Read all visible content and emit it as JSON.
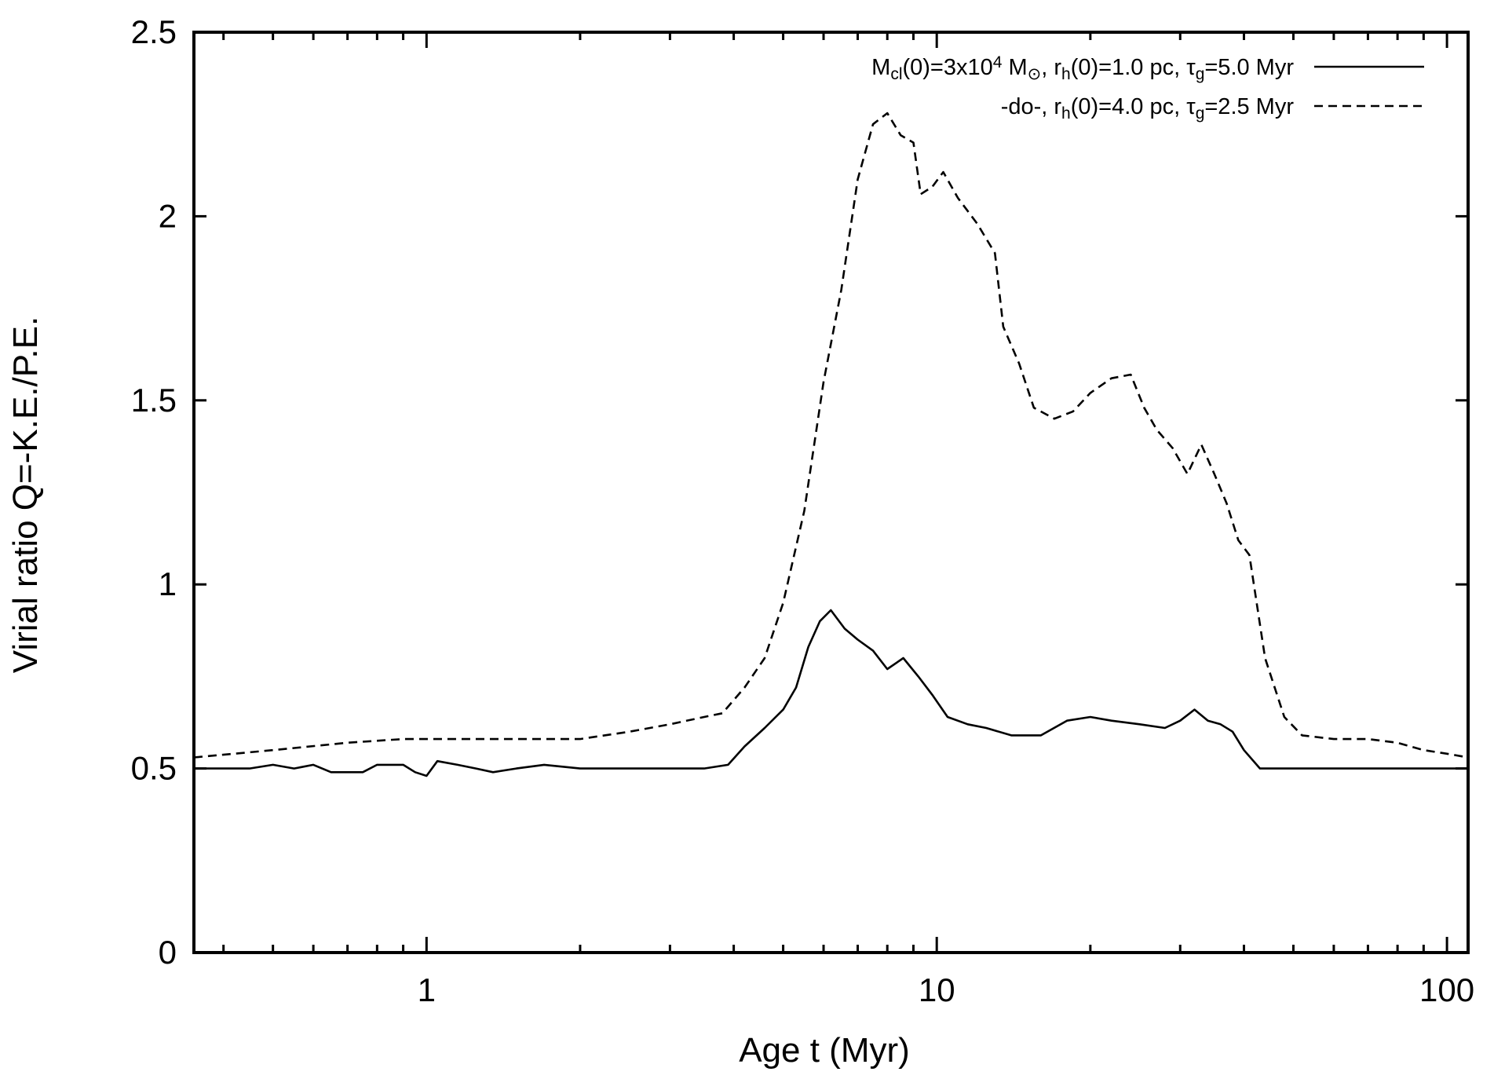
{
  "chart_data": {
    "type": "line",
    "x_scale": "log",
    "xlim": [
      0.35,
      110
    ],
    "ylim": [
      0,
      2.5
    ],
    "xlabel": "Age t (Myr)",
    "ylabel": "Virial ratio Q=-K.E./P.E.",
    "x_ticks": [
      {
        "value": 1,
        "label": "1"
      },
      {
        "value": 10,
        "label": "10"
      },
      {
        "value": 100,
        "label": "100"
      }
    ],
    "y_ticks": [
      {
        "value": 0,
        "label": "0"
      },
      {
        "value": 0.5,
        "label": "0.5"
      },
      {
        "value": 1,
        "label": "1"
      },
      {
        "value": 1.5,
        "label": "1.5"
      },
      {
        "value": 2,
        "label": "2"
      },
      {
        "value": 2.5,
        "label": "2.5"
      }
    ],
    "grid": false,
    "legend_position": "top-right",
    "series": [
      {
        "name": "Mcl(0)=3x10^4 M⊙, rh(0)=1.0 pc, τg=5.0 Myr",
        "legend": [
          {
            "t": "M"
          },
          {
            "t": "cl",
            "sub": true
          },
          {
            "t": "(0)=3x10"
          },
          {
            "t": "4",
            "sup": true
          },
          {
            "t": " M"
          },
          {
            "t": "⊙",
            "sub": true
          },
          {
            "t": ", r"
          },
          {
            "t": "h",
            "sub": true
          },
          {
            "t": "(0)=1.0 pc, τ"
          },
          {
            "t": "g",
            "sub": true
          },
          {
            "t": "=5.0 Myr"
          }
        ],
        "style": "solid",
        "points": [
          [
            0.35,
            0.5
          ],
          [
            0.45,
            0.5
          ],
          [
            0.5,
            0.51
          ],
          [
            0.55,
            0.5
          ],
          [
            0.6,
            0.51
          ],
          [
            0.65,
            0.49
          ],
          [
            0.75,
            0.49
          ],
          [
            0.8,
            0.51
          ],
          [
            0.9,
            0.51
          ],
          [
            0.95,
            0.49
          ],
          [
            1.0,
            0.48
          ],
          [
            1.05,
            0.52
          ],
          [
            1.15,
            0.51
          ],
          [
            1.25,
            0.5
          ],
          [
            1.35,
            0.49
          ],
          [
            1.5,
            0.5
          ],
          [
            1.7,
            0.51
          ],
          [
            2.0,
            0.5
          ],
          [
            2.5,
            0.5
          ],
          [
            3.0,
            0.5
          ],
          [
            3.5,
            0.5
          ],
          [
            3.9,
            0.51
          ],
          [
            4.2,
            0.56
          ],
          [
            4.6,
            0.61
          ],
          [
            5.0,
            0.66
          ],
          [
            5.3,
            0.72
          ],
          [
            5.6,
            0.83
          ],
          [
            5.9,
            0.9
          ],
          [
            6.2,
            0.93
          ],
          [
            6.6,
            0.88
          ],
          [
            7.0,
            0.85
          ],
          [
            7.5,
            0.82
          ],
          [
            8.0,
            0.77
          ],
          [
            8.6,
            0.8
          ],
          [
            9.2,
            0.75
          ],
          [
            9.8,
            0.7
          ],
          [
            10.5,
            0.64
          ],
          [
            11.5,
            0.62
          ],
          [
            12.5,
            0.61
          ],
          [
            14.0,
            0.59
          ],
          [
            16.0,
            0.59
          ],
          [
            18.0,
            0.63
          ],
          [
            20.0,
            0.64
          ],
          [
            22.0,
            0.63
          ],
          [
            25.0,
            0.62
          ],
          [
            28.0,
            0.61
          ],
          [
            30.0,
            0.63
          ],
          [
            32.0,
            0.66
          ],
          [
            34.0,
            0.63
          ],
          [
            36.0,
            0.62
          ],
          [
            38.0,
            0.6
          ],
          [
            40.0,
            0.55
          ],
          [
            43.0,
            0.5
          ],
          [
            60.0,
            0.5
          ],
          [
            110.0,
            0.5
          ]
        ]
      },
      {
        "name": "-do-, rh(0)=4.0 pc, τg=2.5 Myr",
        "legend": [
          {
            "t": "-do-, r"
          },
          {
            "t": "h",
            "sub": true
          },
          {
            "t": "(0)=4.0 pc, τ"
          },
          {
            "t": "g",
            "sub": true
          },
          {
            "t": "=2.5 Myr"
          }
        ],
        "style": "dashed",
        "points": [
          [
            0.35,
            0.53
          ],
          [
            0.5,
            0.55
          ],
          [
            0.7,
            0.57
          ],
          [
            0.9,
            0.58
          ],
          [
            1.5,
            0.58
          ],
          [
            2.0,
            0.58
          ],
          [
            2.5,
            0.6
          ],
          [
            3.0,
            0.62
          ],
          [
            3.5,
            0.64
          ],
          [
            3.8,
            0.65
          ],
          [
            4.2,
            0.72
          ],
          [
            4.6,
            0.8
          ],
          [
            5.0,
            0.95
          ],
          [
            5.5,
            1.2
          ],
          [
            6.0,
            1.55
          ],
          [
            6.5,
            1.8
          ],
          [
            7.0,
            2.1
          ],
          [
            7.5,
            2.25
          ],
          [
            8.0,
            2.28
          ],
          [
            8.5,
            2.22
          ],
          [
            9.0,
            2.2
          ],
          [
            9.3,
            2.06
          ],
          [
            9.8,
            2.08
          ],
          [
            10.3,
            2.12
          ],
          [
            11.0,
            2.05
          ],
          [
            12.0,
            1.98
          ],
          [
            13.0,
            1.9
          ],
          [
            13.5,
            1.7
          ],
          [
            14.5,
            1.6
          ],
          [
            15.5,
            1.48
          ],
          [
            17.0,
            1.45
          ],
          [
            18.5,
            1.47
          ],
          [
            20.0,
            1.52
          ],
          [
            22.0,
            1.56
          ],
          [
            24.0,
            1.57
          ],
          [
            25.5,
            1.48
          ],
          [
            27.0,
            1.42
          ],
          [
            29.0,
            1.37
          ],
          [
            31.0,
            1.3
          ],
          [
            33.0,
            1.38
          ],
          [
            35.0,
            1.3
          ],
          [
            37.0,
            1.22
          ],
          [
            39.0,
            1.12
          ],
          [
            41.0,
            1.08
          ],
          [
            44.0,
            0.8
          ],
          [
            48.0,
            0.64
          ],
          [
            52.0,
            0.59
          ],
          [
            60.0,
            0.58
          ],
          [
            70.0,
            0.58
          ],
          [
            80.0,
            0.57
          ],
          [
            90.0,
            0.55
          ],
          [
            100.0,
            0.54
          ],
          [
            110.0,
            0.53
          ]
        ]
      }
    ]
  }
}
